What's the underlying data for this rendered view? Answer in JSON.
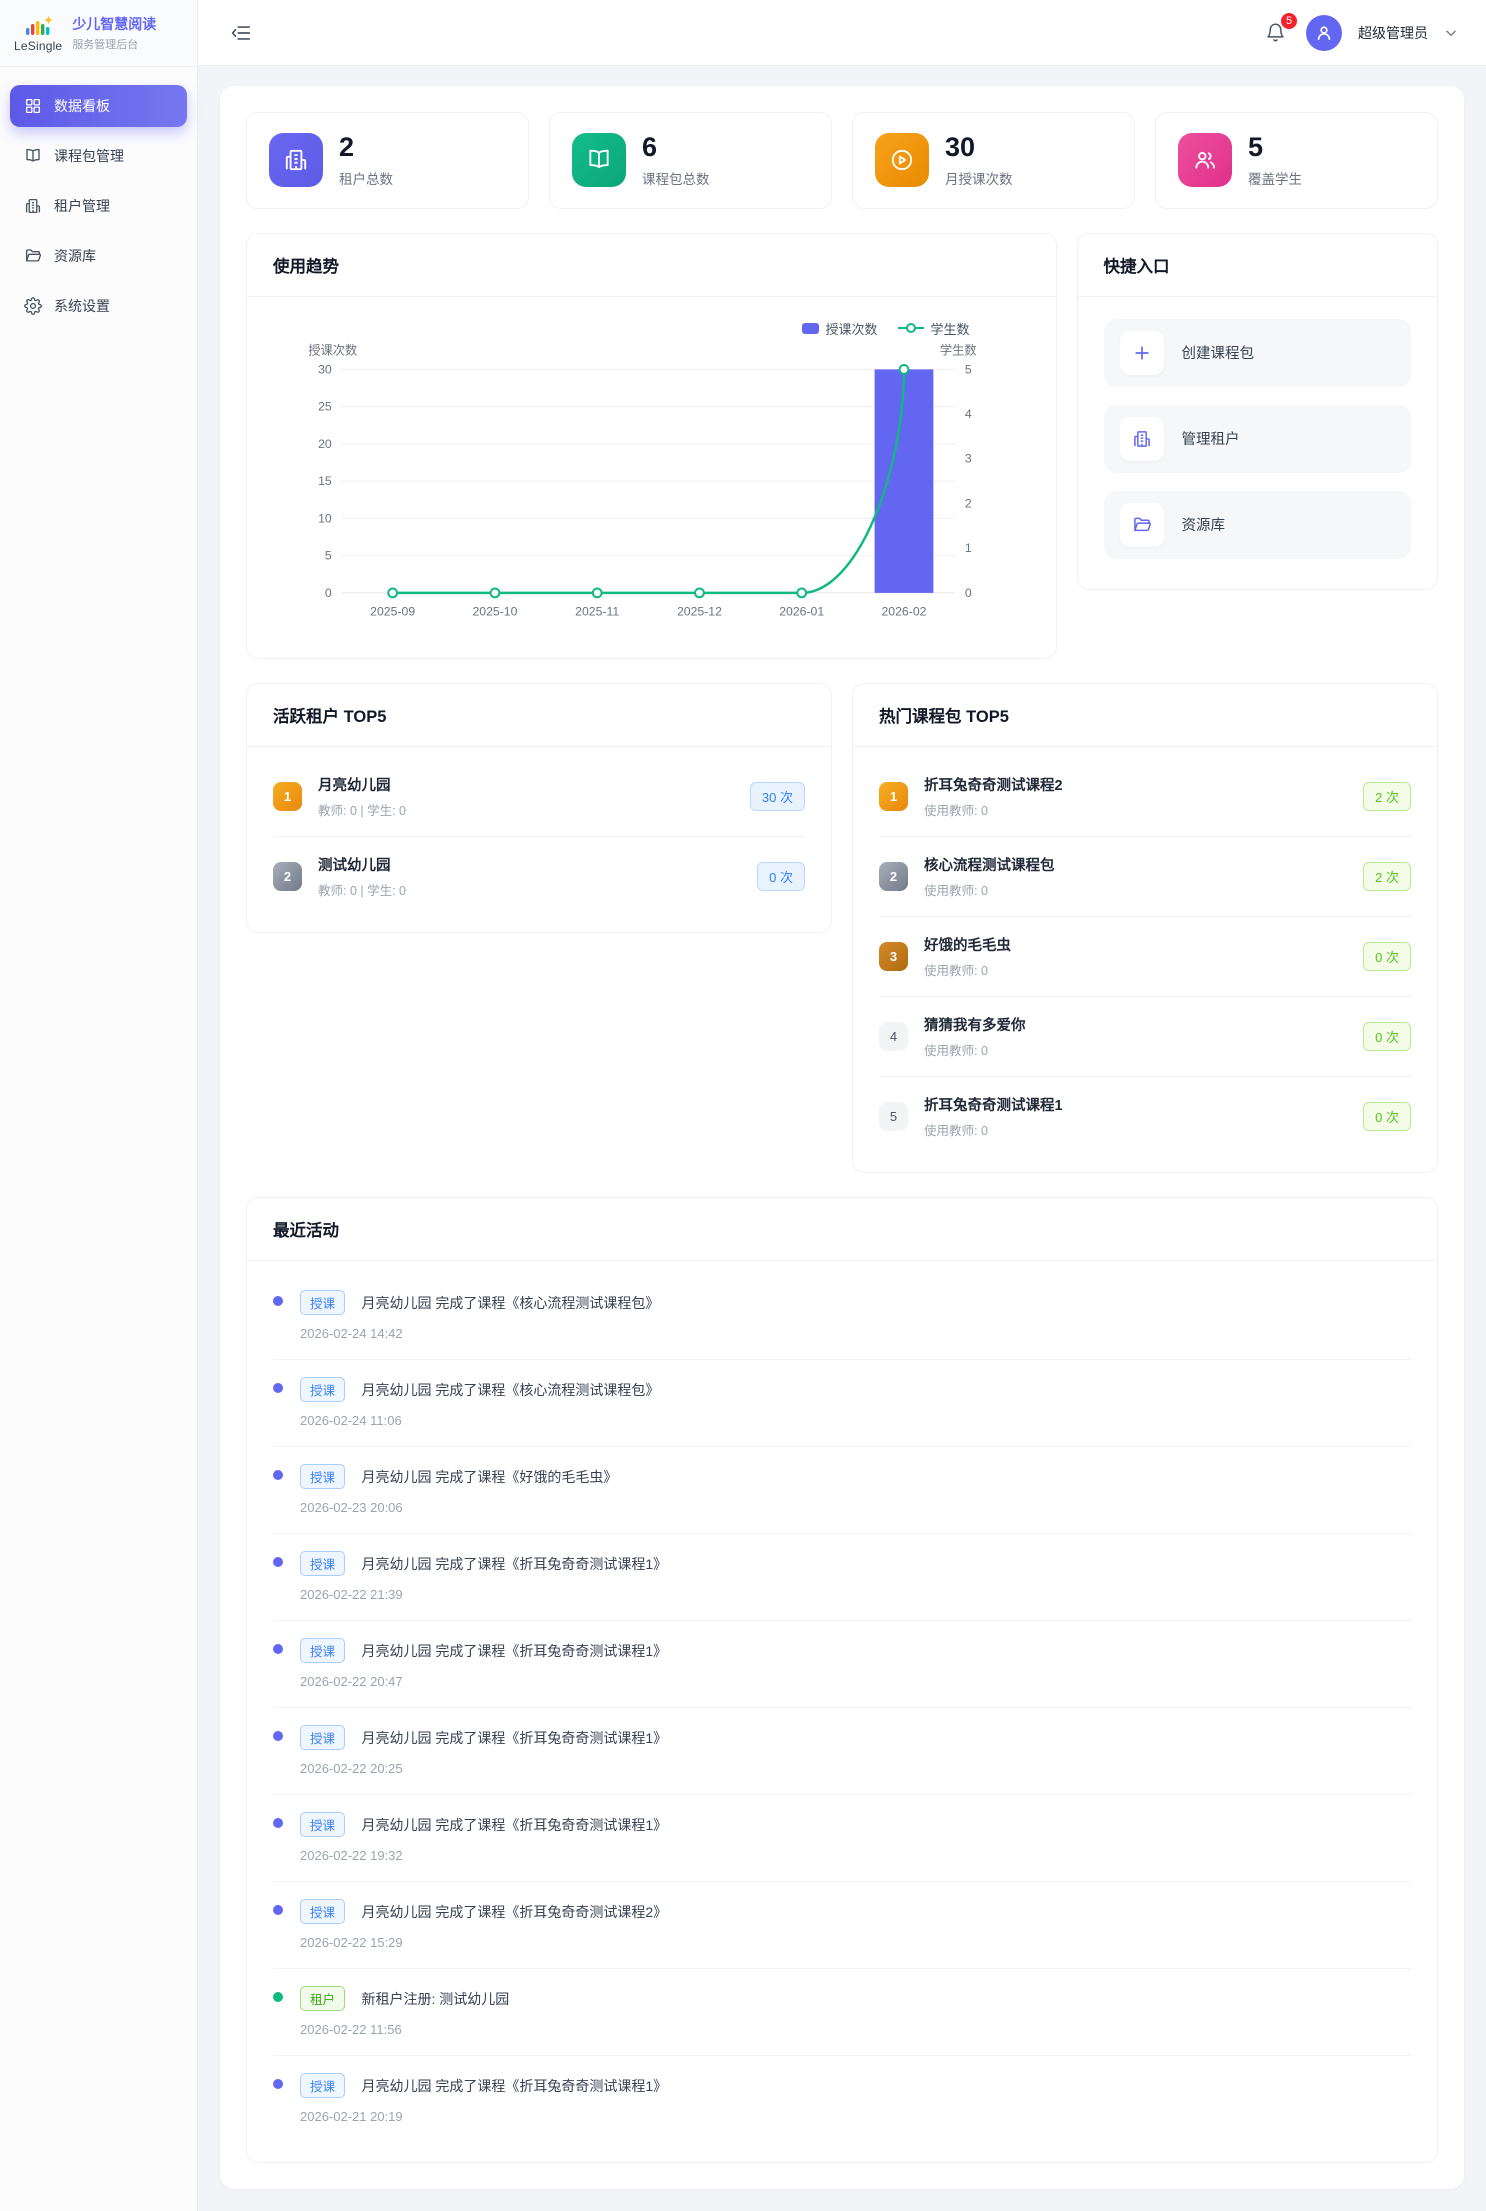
{
  "app": {
    "logo_text": "LeSingle",
    "title": "少儿智慧阅读",
    "subtitle": "服务管理后台"
  },
  "sidebar": {
    "items": [
      {
        "label": "数据看板",
        "icon": "dashboard-icon",
        "active": true
      },
      {
        "label": "课程包管理",
        "icon": "course-package-icon",
        "active": false
      },
      {
        "label": "租户管理",
        "icon": "tenant-icon",
        "active": false
      },
      {
        "label": "资源库",
        "icon": "resource-library-icon",
        "active": false
      },
      {
        "label": "系统设置",
        "icon": "settings-icon",
        "active": false
      }
    ]
  },
  "header": {
    "notification_count": "5",
    "user_name": "超级管理员"
  },
  "stats": [
    {
      "value": "2",
      "label": "租户总数",
      "color": "#6366f1",
      "icon": "building-icon"
    },
    {
      "value": "6",
      "label": "课程包总数",
      "color": "#10b981",
      "icon": "open-book-icon"
    },
    {
      "value": "30",
      "label": "月授课次数",
      "color": "#f59e0b",
      "icon": "play-circle-icon"
    },
    {
      "value": "5",
      "label": "覆盖学生",
      "color": "#ec4899",
      "icon": "users-icon"
    }
  ],
  "trend": {
    "title": "使用趋势"
  },
  "chart_data": {
    "type": "bar",
    "subtype": "bar-line-combo",
    "categories": [
      "2025-09",
      "2025-10",
      "2025-11",
      "2025-12",
      "2026-01",
      "2026-02"
    ],
    "series": [
      {
        "name": "授课次数",
        "type": "bar",
        "yaxis": "left",
        "color": "#6366f1",
        "values": [
          0,
          0,
          0,
          0,
          0,
          30
        ]
      },
      {
        "name": "学生数",
        "type": "line",
        "yaxis": "right",
        "color": "#10b981",
        "values": [
          0,
          0,
          0,
          0,
          0,
          5
        ]
      }
    ],
    "left_axis": {
      "label": "授课次数",
      "min": 0,
      "max": 30,
      "ticks": [
        0,
        5,
        10,
        15,
        20,
        25,
        30
      ]
    },
    "right_axis": {
      "label": "学生数",
      "min": 0,
      "max": 5,
      "ticks": [
        0,
        1,
        2,
        3,
        4,
        5
      ]
    },
    "grid": true,
    "legend_position": "top-right"
  },
  "quick_entry": {
    "title": "快捷入口",
    "items": [
      {
        "label": "创建课程包",
        "icon": "plus-icon"
      },
      {
        "label": "管理租户",
        "icon": "building-icon"
      },
      {
        "label": "资源库",
        "icon": "folder-icon"
      }
    ]
  },
  "active_tenants": {
    "title": "活跃租户 TOP5",
    "items": [
      {
        "rank": "1",
        "name": "月亮幼儿园",
        "meta": "教师: 0 | 学生: 0",
        "count": "30 次"
      },
      {
        "rank": "2",
        "name": "测试幼儿园",
        "meta": "教师: 0 | 学生: 0",
        "count": "0 次"
      }
    ]
  },
  "hot_courses": {
    "title": "热门课程包 TOP5",
    "items": [
      {
        "rank": "1",
        "name": "折耳兔奇奇测试课程2",
        "meta": "使用教师: 0",
        "count": "2 次"
      },
      {
        "rank": "2",
        "name": "核心流程测试课程包",
        "meta": "使用教师: 0",
        "count": "2 次"
      },
      {
        "rank": "3",
        "name": "好饿的毛毛虫",
        "meta": "使用教师: 0",
        "count": "0 次"
      },
      {
        "rank": "4",
        "name": "猜猜我有多爱你",
        "meta": "使用教师: 0",
        "count": "0 次"
      },
      {
        "rank": "5",
        "name": "折耳兔奇奇测试课程1",
        "meta": "使用教师: 0",
        "count": "0 次"
      }
    ]
  },
  "activities": {
    "title": "最近活动",
    "items": [
      {
        "tag": "授课",
        "type": "course",
        "text": "月亮幼儿园 完成了课程《核心流程测试课程包》",
        "time": "2026-02-24 14:42"
      },
      {
        "tag": "授课",
        "type": "course",
        "text": "月亮幼儿园 完成了课程《核心流程测试课程包》",
        "time": "2026-02-24 11:06"
      },
      {
        "tag": "授课",
        "type": "course",
        "text": "月亮幼儿园 完成了课程《好饿的毛毛虫》",
        "time": "2026-02-23 20:06"
      },
      {
        "tag": "授课",
        "type": "course",
        "text": "月亮幼儿园 完成了课程《折耳兔奇奇测试课程1》",
        "time": "2026-02-22 21:39"
      },
      {
        "tag": "授课",
        "type": "course",
        "text": "月亮幼儿园 完成了课程《折耳兔奇奇测试课程1》",
        "time": "2026-02-22 20:47"
      },
      {
        "tag": "授课",
        "type": "course",
        "text": "月亮幼儿园 完成了课程《折耳兔奇奇测试课程1》",
        "time": "2026-02-22 20:25"
      },
      {
        "tag": "授课",
        "type": "course",
        "text": "月亮幼儿园 完成了课程《折耳兔奇奇测试课程1》",
        "time": "2026-02-22 19:32"
      },
      {
        "tag": "授课",
        "type": "course",
        "text": "月亮幼儿园 完成了课程《折耳兔奇奇测试课程2》",
        "time": "2026-02-22 15:29"
      },
      {
        "tag": "租户",
        "type": "tenant",
        "text": "新租户注册: 测试幼儿园",
        "time": "2026-02-22 11:56"
      },
      {
        "tag": "授课",
        "type": "course",
        "text": "月亮幼儿园 完成了课程《折耳兔奇奇测试课程1》",
        "time": "2026-02-21 20:19"
      }
    ]
  }
}
